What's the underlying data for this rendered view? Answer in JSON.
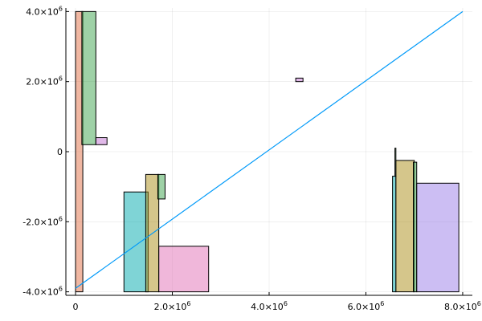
{
  "chart_data": {
    "type": "bar",
    "title": "",
    "xlabel": "",
    "ylabel": "",
    "xlim": [
      -200000,
      8200000
    ],
    "ylim": [
      -4100000,
      4100000
    ],
    "grid": true,
    "legend": "none",
    "x_ticks": [
      {
        "value": 0,
        "mantissa": "0",
        "exponent": ""
      },
      {
        "value": 2000000,
        "mantissa": "2.0×10",
        "exponent": "6"
      },
      {
        "value": 4000000,
        "mantissa": "4.0×10",
        "exponent": "6"
      },
      {
        "value": 6000000,
        "mantissa": "6.0×10",
        "exponent": "6"
      },
      {
        "value": 8000000,
        "mantissa": "8.0×10",
        "exponent": "6"
      }
    ],
    "y_ticks": [
      {
        "value": 4000000,
        "mantissa": "4.0×10",
        "exponent": "6"
      },
      {
        "value": 2000000,
        "mantissa": "2.0×10",
        "exponent": "6"
      },
      {
        "value": 0,
        "mantissa": "0",
        "exponent": ""
      },
      {
        "value": -2000000,
        "mantissa": "-2.0×10",
        "exponent": "6"
      },
      {
        "value": -4000000,
        "mantissa": "-4.0×10",
        "exponent": "6"
      }
    ],
    "bars": [
      {
        "x0": 0,
        "x1": 150000,
        "y0": -4000000,
        "y1": 4000000,
        "color": "#e26f46"
      },
      {
        "x0": 130000,
        "x1": 420000,
        "y0": 200000,
        "y1": 4000000,
        "color": "#3da44d"
      },
      {
        "x0": 420000,
        "x1": 650000,
        "y0": 200000,
        "y1": 400000,
        "color": "#c271d2"
      },
      {
        "x0": 4550000,
        "x1": 4700000,
        "y0": 2000000,
        "y1": 2100000,
        "color": "#c271d2"
      },
      {
        "x0": 1000000,
        "x1": 1500000,
        "y0": -4000000,
        "y1": -1150000,
        "color": "#00a9ad"
      },
      {
        "x0": 1450000,
        "x1": 1720000,
        "y0": -4000000,
        "y1": -650000,
        "color": "#ac8d18"
      },
      {
        "x0": 1700000,
        "x1": 1850000,
        "y0": -1350000,
        "y1": -650000,
        "color": "#3da44d"
      },
      {
        "x0": 1720000,
        "x1": 2750000,
        "y0": -4000000,
        "y1": -2700000,
        "color": "#e16fb6"
      },
      {
        "x0": 6550000,
        "x1": 6620000,
        "y0": -4000000,
        "y1": -700000,
        "color": "#00a9ad"
      },
      {
        "x0": 6600000,
        "x1": 6620000,
        "y0": -700000,
        "y1": 100000,
        "color": "#3da44d"
      },
      {
        "x0": 6620000,
        "x1": 7000000,
        "y0": -4000000,
        "y1": -250000,
        "color": "#ac8d18"
      },
      {
        "x0": 6980000,
        "x1": 7050000,
        "y0": -4000000,
        "y1": -300000,
        "color": "#3da44d"
      },
      {
        "x0": 7050000,
        "x1": 7920000,
        "y0": -4000000,
        "y1": -900000,
        "color": "#9a7ee8"
      }
    ],
    "line": {
      "x": [
        0,
        8000000
      ],
      "y": [
        -3900000,
        4000000
      ],
      "color": "#009af9"
    }
  }
}
